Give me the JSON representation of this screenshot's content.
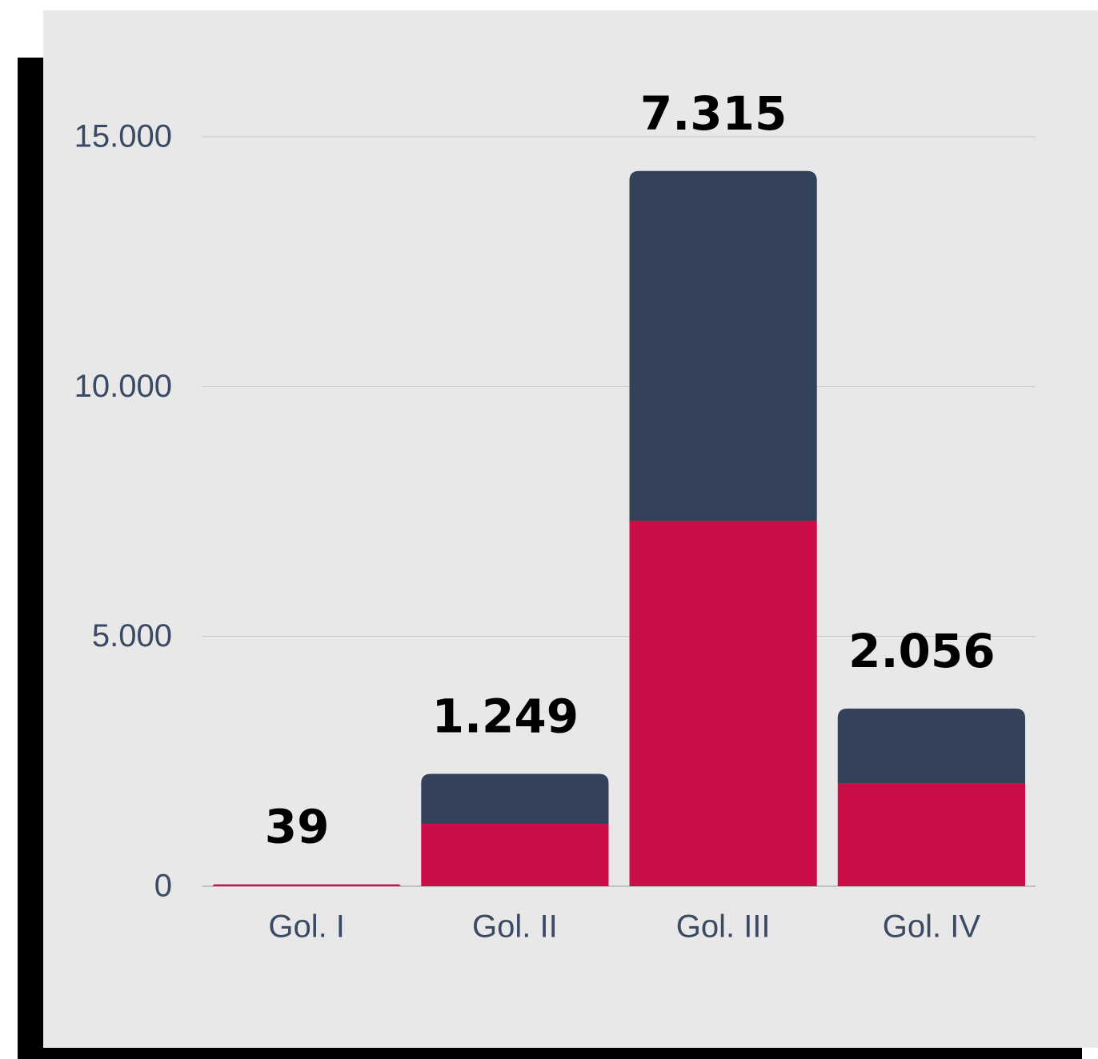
{
  "chart_data": {
    "type": "stacked_bar",
    "categories": [
      "Gol. I",
      "Gol. II",
      "Gol. III",
      "Gol. IV"
    ],
    "series": [
      {
        "color": "#cb0e48",
        "values": [
          39,
          1249,
          7315,
          2056
        ],
        "value_labels": [
          "39",
          "1.249",
          "7.315",
          "2.056"
        ]
      },
      {
        "color": "#334259",
        "values": [
          0,
          1000,
          7000,
          1500
        ]
      }
    ],
    "ylim": [
      0,
      15000
    ],
    "yticks": [
      0,
      {
        "value": 5000,
        "label": "5.000"
      },
      {
        "value": 10000,
        "label": "10.000"
      },
      {
        "value": 15000,
        "label": "15.000"
      }
    ],
    "grid": true
  }
}
